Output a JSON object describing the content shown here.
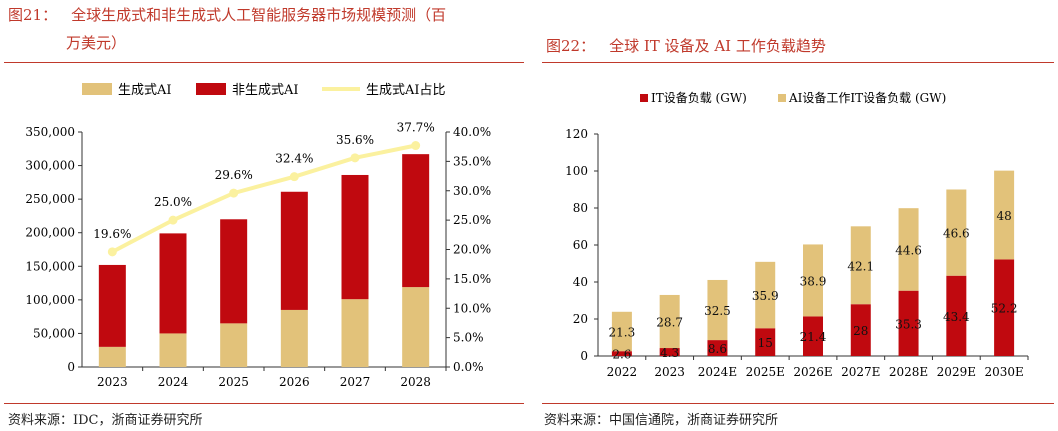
{
  "charts": [
    {
      "figure_label": "图21：",
      "title_line1": "全球生成式和非生成式人工智能服务器市场规模预测（百",
      "title_line2": "万美元）",
      "source": "资料来源：IDC，浙商证券研究所",
      "colors": {
        "gen": "#e2c27a",
        "nongen": "#c0090f",
        "line": "#fbf19f"
      }
    },
    {
      "figure_label": "图22：",
      "title": "全球 IT 设备及 AI 工作负载趋势",
      "source": "资料来源：中国信通院，浙商证券研究所",
      "colors": {
        "it": "#c0090f",
        "ai": "#e2c27a"
      }
    }
  ],
  "chart_data": [
    {
      "type": "bar",
      "stacked": true,
      "categories": [
        "2023",
        "2024",
        "2025",
        "2026",
        "2027",
        "2028"
      ],
      "series": [
        {
          "name": "生成式AI",
          "type": "bar",
          "values": [
            30000,
            50000,
            65000,
            85000,
            101000,
            119000
          ]
        },
        {
          "name": "非生成式AI",
          "type": "bar",
          "values": [
            122000,
            149000,
            155000,
            176000,
            185000,
            198000
          ]
        },
        {
          "name": "生成式AI占比",
          "type": "line",
          "axis": "right",
          "values": [
            19.6,
            25.0,
            29.6,
            32.4,
            35.6,
            37.7
          ],
          "labels": [
            "19.6%",
            "25.0%",
            "29.6%",
            "32.4%",
            "35.6%",
            "37.7%"
          ]
        }
      ],
      "ylim": [
        0,
        350000
      ],
      "y_ticks": [
        "0",
        "50,000",
        "100,000",
        "150,000",
        "200,000",
        "250,000",
        "300,000",
        "350,000"
      ],
      "y2lim": [
        0,
        40
      ],
      "y2_ticks": [
        "0.0%",
        "5.0%",
        "10.0%",
        "15.0%",
        "20.0%",
        "25.0%",
        "30.0%",
        "35.0%",
        "40.0%"
      ],
      "legend_position": "top",
      "grid": false
    },
    {
      "type": "bar",
      "stacked": true,
      "categories": [
        "2022",
        "2023",
        "2024E",
        "2025E",
        "2026E",
        "2027E",
        "2028E",
        "2029E",
        "2030E"
      ],
      "series": [
        {
          "name": "IT设备负载 (GW)",
          "values": [
            2.6,
            4.3,
            8.6,
            15,
            21.4,
            28,
            35.3,
            43.4,
            52.2
          ],
          "labels": [
            "2.6",
            "4.3",
            "8.6",
            "15",
            "21.4",
            "28",
            "35.3",
            "43.4",
            "52.2"
          ]
        },
        {
          "name": "AI设备工作IT设备负载 (GW)",
          "values": [
            21.3,
            28.7,
            32.5,
            35.9,
            38.9,
            42.1,
            44.6,
            46.6,
            48
          ],
          "labels": [
            "21.3",
            "28.7",
            "32.5",
            "35.9",
            "38.9",
            "42.1",
            "44.6",
            "46.6",
            "48"
          ]
        }
      ],
      "ylim": [
        0,
        120
      ],
      "y_ticks": [
        "0",
        "20",
        "40",
        "60",
        "80",
        "100",
        "120"
      ],
      "legend_position": "top",
      "grid": false
    }
  ]
}
